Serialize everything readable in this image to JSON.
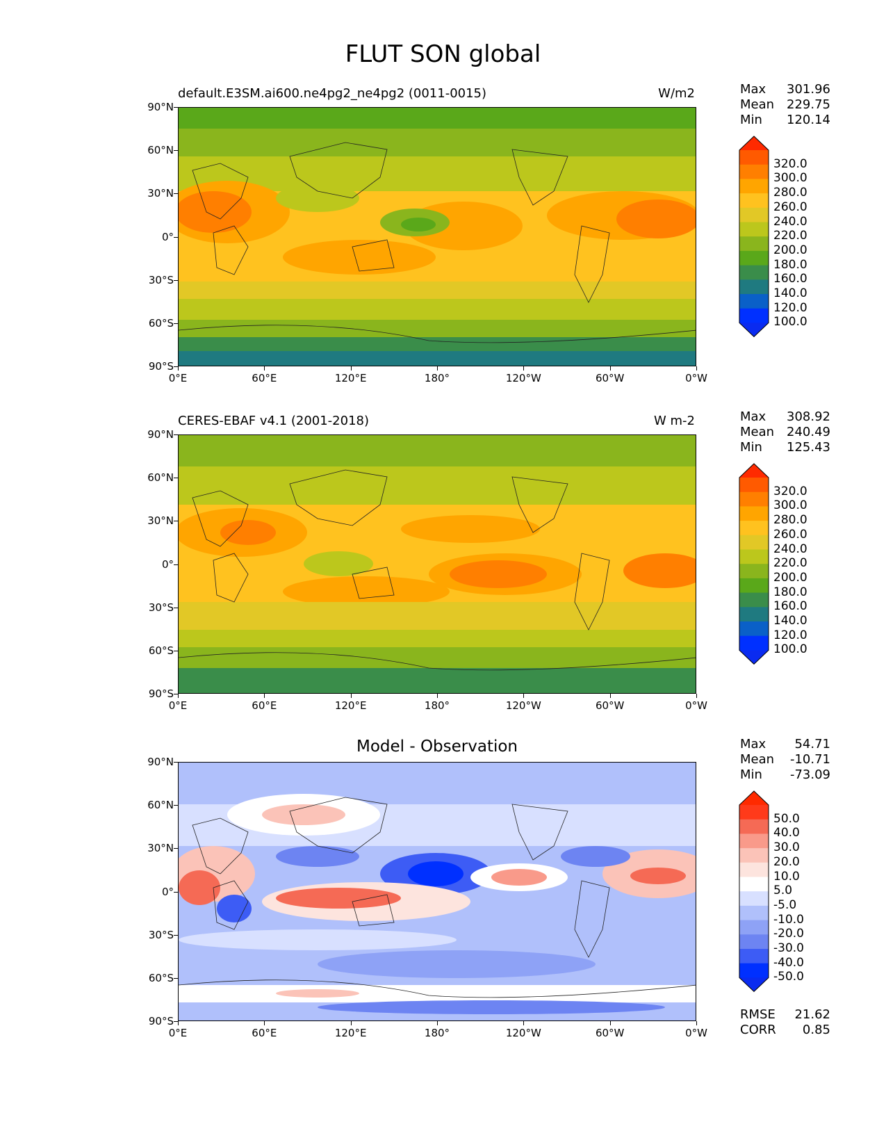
{
  "figure": {
    "title": "FLUT SON global"
  },
  "axes": {
    "lat_labels": [
      "90°N",
      "60°N",
      "30°N",
      "0°",
      "30°S",
      "60°S",
      "90°S"
    ],
    "lon_labels": [
      "0°E",
      "60°E",
      "120°E",
      "180°",
      "120°W",
      "60°W",
      "0°W"
    ]
  },
  "panels": [
    {
      "id": "model",
      "title_left": "default.E3SM.ai600.ne4pg2_ne4pg2 (0011-0015)",
      "title_right": "W/m2",
      "title_center": "",
      "stats": [
        {
          "label": "Max",
          "value": "301.96"
        },
        {
          "label": "Mean",
          "value": "229.75"
        },
        {
          "label": "Min",
          "value": "120.14"
        }
      ],
      "extra_stats": [],
      "colorbar_labels": [
        "320.0",
        "300.0",
        "280.0",
        "260.0",
        "240.0",
        "220.0",
        "200.0",
        "180.0",
        "160.0",
        "140.0",
        "120.0",
        "100.0"
      ],
      "colorbar_colors": [
        "#ff2a00",
        "#ff5a00",
        "#ff7f00",
        "#ffa500",
        "#ffc21f",
        "#e2c826",
        "#bcc71c",
        "#8ab51d",
        "#5aa81a",
        "#3a8d4a",
        "#1f7a80",
        "#0a60c8",
        "#0030ff",
        "#0a2bf0"
      ]
    },
    {
      "id": "obs",
      "title_left": "CERES-EBAF v4.1 (2001-2018)",
      "title_right": "W m-2",
      "title_center": "",
      "stats": [
        {
          "label": "Max",
          "value": "308.92"
        },
        {
          "label": "Mean",
          "value": "240.49"
        },
        {
          "label": "Min",
          "value": "125.43"
        }
      ],
      "extra_stats": [],
      "colorbar_labels": [
        "320.0",
        "300.0",
        "280.0",
        "260.0",
        "240.0",
        "220.0",
        "200.0",
        "180.0",
        "160.0",
        "140.0",
        "120.0",
        "100.0"
      ],
      "colorbar_colors": [
        "#ff2a00",
        "#ff5a00",
        "#ff7f00",
        "#ffa500",
        "#ffc21f",
        "#e2c826",
        "#bcc71c",
        "#8ab51d",
        "#5aa81a",
        "#3a8d4a",
        "#1f7a80",
        "#0a60c8",
        "#0030ff",
        "#0a2bf0"
      ]
    },
    {
      "id": "diff",
      "title_left": "",
      "title_right": "",
      "title_center": "Model - Observation",
      "stats": [
        {
          "label": "Max",
          "value": "54.71"
        },
        {
          "label": "Mean",
          "value": "-10.71"
        },
        {
          "label": "Min",
          "value": "-73.09"
        }
      ],
      "extra_stats": [
        {
          "label": "RMSE",
          "value": "21.62"
        },
        {
          "label": "CORR",
          "value": "0.85"
        }
      ],
      "colorbar_labels": [
        "50.0",
        "40.0",
        "30.0",
        "20.0",
        "10.0",
        "5.0",
        "-5.0",
        "-10.0",
        "-20.0",
        "-30.0",
        "-40.0",
        "-50.0"
      ],
      "colorbar_colors": [
        "#ff2a00",
        "#ff3a1a",
        "#f56a55",
        "#f99a8a",
        "#fbc3b8",
        "#fde4de",
        "#ffffff",
        "#d8e0ff",
        "#b0c0fb",
        "#8ea2f6",
        "#6d84f2",
        "#3d5cf5",
        "#0030ff",
        "#0a2bf0"
      ]
    }
  ],
  "chart_data": {
    "type": "heatmap",
    "title": "FLUT SON global",
    "variable": "FLUT",
    "season": "SON",
    "panels": [
      {
        "name": "default.E3SM.ai600.ne4pg2_ne4pg2 (0011-0015)",
        "units": "W/m2",
        "max": 301.96,
        "mean": 229.75,
        "min": 120.14,
        "levels": [
          100,
          120,
          140,
          160,
          180,
          200,
          220,
          240,
          260,
          280,
          300,
          320
        ]
      },
      {
        "name": "CERES-EBAF v4.1 (2001-2018)",
        "units": "W m-2",
        "max": 308.92,
        "mean": 240.49,
        "min": 125.43,
        "levels": [
          100,
          120,
          140,
          160,
          180,
          200,
          220,
          240,
          260,
          280,
          300,
          320
        ]
      },
      {
        "name": "Model - Observation",
        "units": "",
        "max": 54.71,
        "mean": -10.71,
        "min": -73.09,
        "rmse": 21.62,
        "corr": 0.85,
        "levels": [
          -50,
          -40,
          -30,
          -20,
          -10,
          -5,
          5,
          10,
          20,
          30,
          40,
          50
        ]
      }
    ],
    "xlabel": "",
    "ylabel": "",
    "xlim": [
      0,
      360
    ],
    "ylim": [
      -90,
      90
    ]
  }
}
